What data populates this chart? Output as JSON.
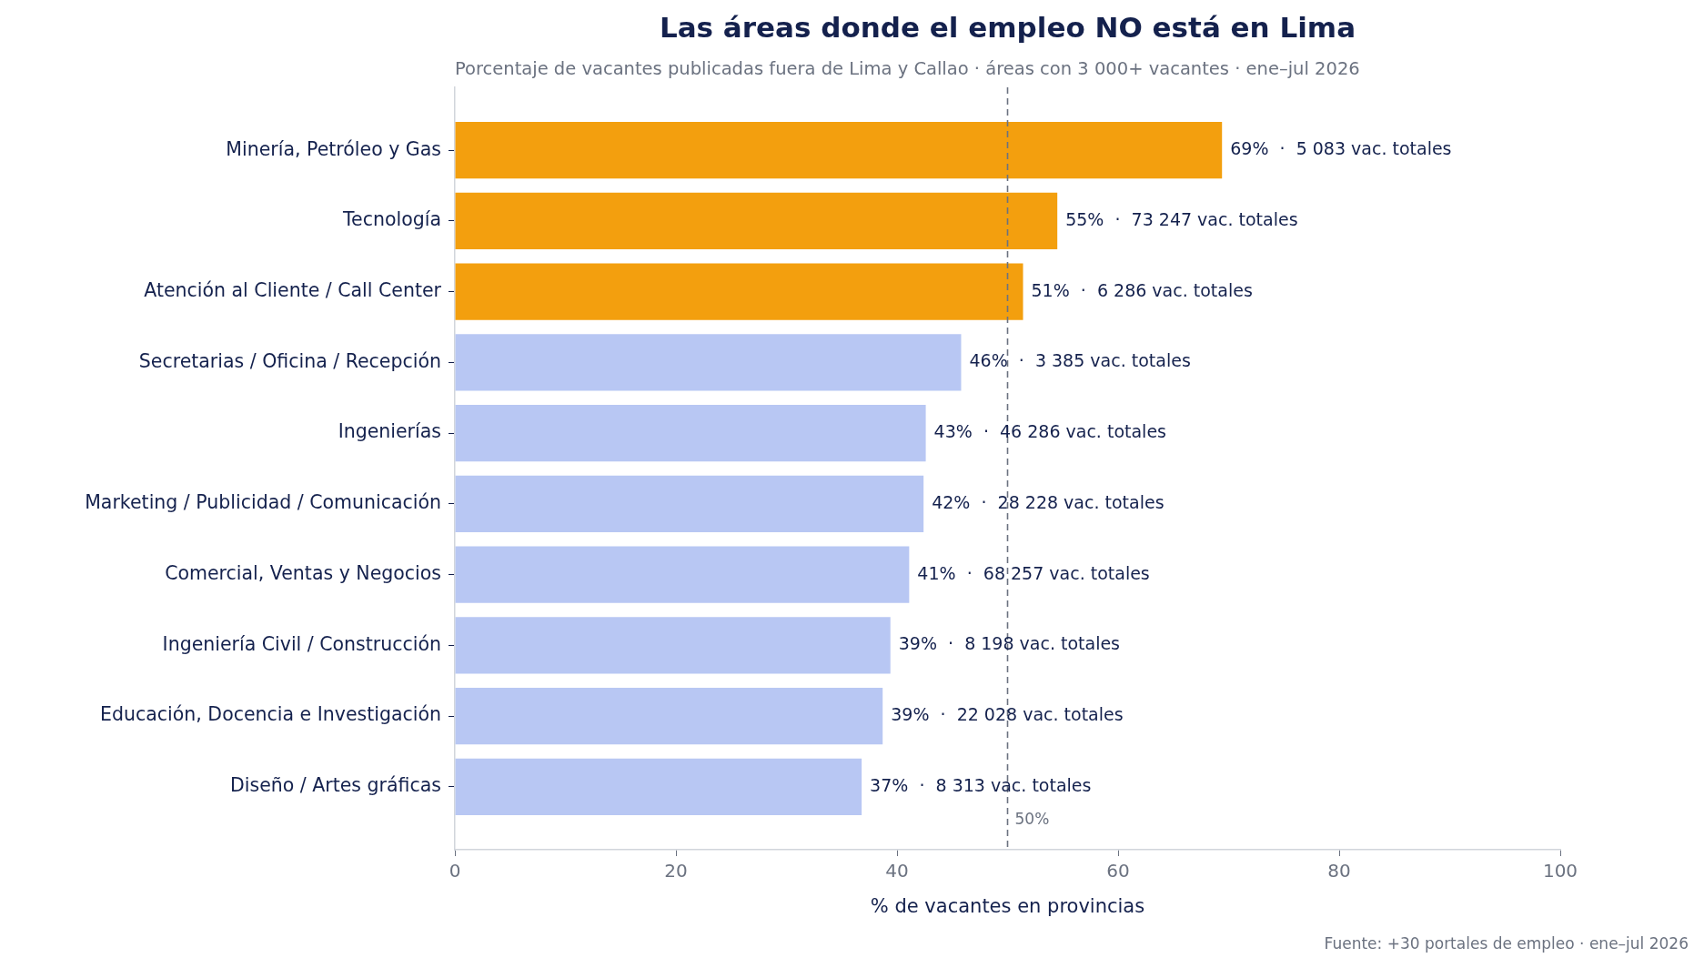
{
  "chart_data": {
    "type": "bar",
    "orientation": "horizontal",
    "title": "Las áreas donde el empleo NO está en Lima",
    "subtitle": "Porcentaje de vacantes publicadas fuera de Lima y Callao · áreas con 3 000+ vacantes · ene–jul 2026",
    "xlabel": "% de vacantes en provincias",
    "categories": [
      "Minería, Petróleo y Gas",
      "Tecnología",
      "Atención al Cliente / Call Center",
      "Secretarias / Oficina / Recepción",
      "Ingenierías",
      "Marketing / Publicidad / Comunicación",
      "Comercial, Ventas y Negocios",
      "Ingeniería Civil / Construcción",
      "Educación, Docencia e Investigación",
      "Diseño / Artes gráficas"
    ],
    "values": [
      69.4,
      54.5,
      51.4,
      45.8,
      42.6,
      42.4,
      41.1,
      39.4,
      38.7,
      36.8
    ],
    "colors": [
      "#f39f0e",
      "#f39f0e",
      "#f39f0e",
      "#b8c7f3",
      "#b8c7f3",
      "#b8c7f3",
      "#b8c7f3",
      "#b8c7f3",
      "#b8c7f3",
      "#b8c7f3"
    ],
    "value_labels": [
      "69%  ·  5 083 vac. totales",
      "55%  ·  73 247 vac. totales",
      "51%  ·  6 286 vac. totales",
      "46%  ·  3 385 vac. totales",
      "43%  ·  46 286 vac. totales",
      "42%  ·  28 228 vac. totales",
      "41%  ·  68 257 vac. totales",
      "39%  ·  8 198 vac. totales",
      "39%  ·  22 028 vac. totales",
      "37%  ·  8 313 vac. totales"
    ],
    "xlim": [
      0,
      100
    ],
    "xticks": [
      0,
      20,
      40,
      60,
      80,
      100
    ],
    "grid": false,
    "legend": false,
    "ref_lines": [
      {
        "axis": "x",
        "value": 50,
        "label": "50%",
        "color": "#6b7280",
        "line_style": "dashed"
      }
    ],
    "annotations": [
      "Fuente: +30 portales de empleo · ene–jul 2026"
    ]
  }
}
